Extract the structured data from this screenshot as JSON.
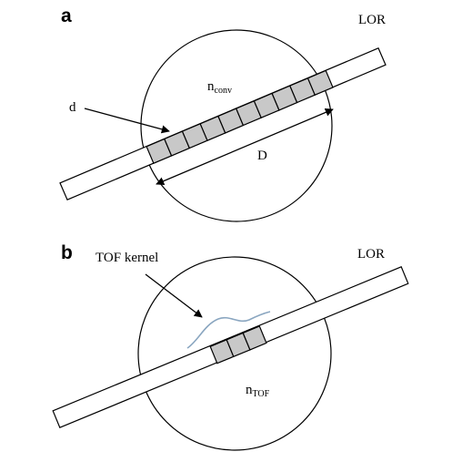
{
  "colors": {
    "voxel_fill": "#c8c8c8",
    "kernel_stroke": "#8aa6c0",
    "line_color": "#000000"
  },
  "panel_a": {
    "letter": "a",
    "lor_label": "LOR",
    "n_conv_main": "n",
    "n_conv_sub": "conv",
    "d_label": "d",
    "D_label": "D",
    "voxel_count": 10
  },
  "panel_b": {
    "letter": "b",
    "lor_label": "LOR",
    "tof_kernel_label": "TOF kernel",
    "n_tof_main": "n",
    "n_tof_sub": "TOF",
    "voxel_count": 3
  }
}
